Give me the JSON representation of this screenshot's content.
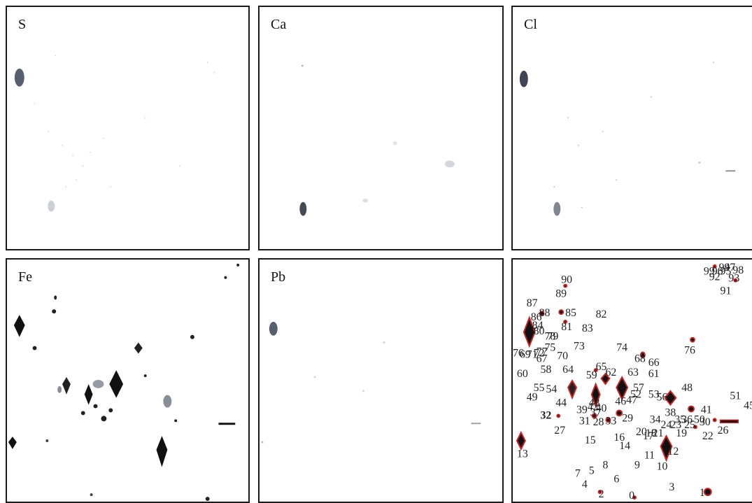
{
  "panels": [
    {
      "id": "s",
      "label": "S"
    },
    {
      "id": "ca",
      "label": "Ca"
    },
    {
      "id": "cl",
      "label": "Cl"
    },
    {
      "id": "fe",
      "label": "Fe"
    },
    {
      "id": "pb",
      "label": "Pb"
    },
    {
      "id": "overlay",
      "label": ""
    }
  ],
  "particle_labels": [
    "90",
    "89",
    "87",
    "88",
    "85",
    "82",
    "86",
    "84",
    "81",
    "83",
    "80",
    "79",
    "78",
    "73",
    "75",
    "70",
    "77",
    "76",
    "69",
    "71",
    "72",
    "67",
    "74",
    "68",
    "66",
    "76",
    "58",
    "64",
    "60",
    "65",
    "59",
    "62",
    "63",
    "61",
    "55",
    "54",
    "53",
    "49",
    "44",
    "48",
    "46",
    "47",
    "56",
    "57",
    "52",
    "51",
    "45",
    "43",
    "39",
    "41",
    "50",
    "42",
    "40",
    "37",
    "38",
    "35",
    "34",
    "36",
    "32",
    "31",
    "28",
    "33",
    "29",
    "30",
    "27",
    "24",
    "23",
    "25",
    "26",
    "22",
    "20",
    "21",
    "18",
    "17",
    "19",
    "16",
    "15",
    "14",
    "12",
    "13",
    "11",
    "10",
    "9",
    "8",
    "7",
    "6",
    "5",
    "4",
    "3",
    "2",
    "1",
    "0",
    "99",
    "96",
    "95",
    "92",
    "93",
    "98",
    "97",
    "94",
    "91"
  ],
  "colors": {
    "border": "#1a1a1a",
    "particle": "#111111",
    "outline": "#cc2222",
    "faint": "#8a8f99"
  }
}
